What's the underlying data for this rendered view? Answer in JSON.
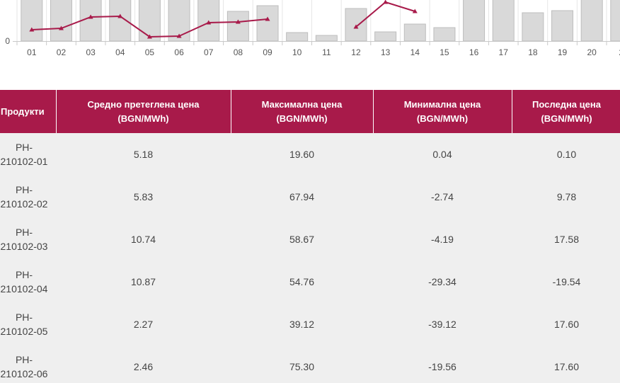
{
  "chart_data": {
    "type": "bar+line",
    "categories": [
      "01",
      "02",
      "03",
      "04",
      "05",
      "06",
      "07",
      "08",
      "09",
      "10",
      "11",
      "12",
      "13",
      "14",
      "15",
      "16",
      "17",
      "18",
      "19",
      "20",
      "2"
    ],
    "series": [
      {
        "kind": "bar",
        "values": [
          62,
          62,
          62,
          62,
          62,
          62,
          62,
          42,
          50,
          12,
          8,
          46,
          13,
          24,
          19,
          62,
          62,
          40,
          43,
          62,
          62
        ]
      },
      {
        "kind": "line",
        "values": [
          16,
          18,
          34,
          35,
          6,
          7,
          26,
          27,
          31,
          null,
          null,
          20,
          55,
          42,
          null,
          null,
          null,
          null,
          null,
          null,
          null
        ]
      }
    ],
    "ytick": "0",
    "ylim": [
      0,
      60
    ],
    "bar_color": "#d9d9d9",
    "line_color": "#a81a4a"
  },
  "table": {
    "headers": [
      {
        "line1": "Продукти",
        "line2": ""
      },
      {
        "line1": "Средно претеглена цена",
        "line2": "(BGN/MWh)"
      },
      {
        "line1": "Максимална цена",
        "line2": "(BGN/MWh)"
      },
      {
        "line1": "Минимална цена",
        "line2": "(BGN/MWh)"
      },
      {
        "line1": "Последна цена",
        "line2": "(BGN/MWh)"
      }
    ],
    "rows": [
      {
        "p1": "PH-",
        "p2": "210102-01",
        "avg": "5.18",
        "max": "19.60",
        "min": "0.04",
        "last": "0.10"
      },
      {
        "p1": "PH-",
        "p2": "210102-02",
        "avg": "5.83",
        "max": "67.94",
        "min": "-2.74",
        "last": "9.78"
      },
      {
        "p1": "PH-",
        "p2": "210102-03",
        "avg": "10.74",
        "max": "58.67",
        "min": "-4.19",
        "last": "17.58"
      },
      {
        "p1": "PH-",
        "p2": "210102-04",
        "avg": "10.87",
        "max": "54.76",
        "min": "-29.34",
        "last": "-19.54"
      },
      {
        "p1": "PH-",
        "p2": "210102-05",
        "avg": "2.27",
        "max": "39.12",
        "min": "-39.12",
        "last": "17.60"
      },
      {
        "p1": "PH-",
        "p2": "210102-06",
        "avg": "2.46",
        "max": "75.30",
        "min": "-19.56",
        "last": "17.60"
      }
    ]
  }
}
